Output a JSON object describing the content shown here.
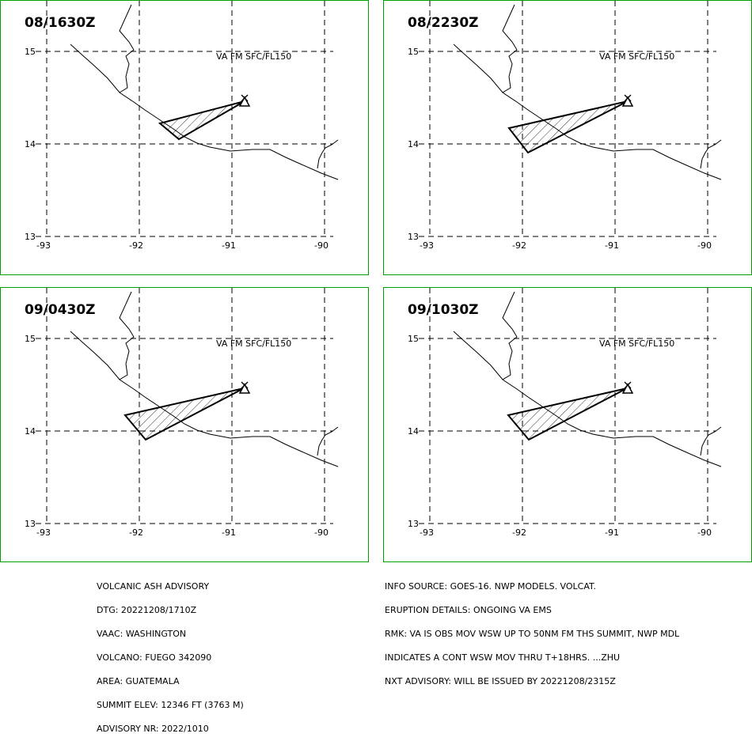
{
  "panels": [
    {
      "time": "08/1630Z",
      "level": "VA FM SFC/FL150"
    },
    {
      "time": "08/2230Z",
      "level": "VA FM SFC/FL150"
    },
    {
      "time": "09/0430Z",
      "level": "VA FM SFC/FL150"
    },
    {
      "time": "09/1030Z",
      "level": "VA FM SFC/FL150"
    }
  ],
  "lat_labels": [
    "15",
    "14",
    "13"
  ],
  "lon_labels": [
    "-93",
    "-92",
    "-91",
    "-90"
  ],
  "advisory_left": [
    "VOLCANIC ASH ADVISORY",
    "DTG: 20221208/1710Z",
    "VAAC: WASHINGTON",
    "VOLCANO: FUEGO 342090",
    "AREA: GUATEMALA",
    "SUMMIT ELEV: 12346 FT (3763 M)",
    "ADVISORY NR: 2022/1010"
  ],
  "advisory_right": [
    "INFO SOURCE: GOES-16. NWP MODELS. VOLCAT.",
    "ERUPTION DETAILS: ONGOING VA EMS",
    "RMK: VA IS OBS MOV WSW UP TO 50NM FM THS SUMMIT, NWP MDL",
    "INDICATES A CONT WSW MOV THRU T+18HRS. ...ZHU",
    "NXT ADVISORY: WILL BE ISSUED BY 20221208/2315Z"
  ],
  "colors": {
    "frame": "#00a000",
    "lines": "#000000",
    "background": "#ffffff"
  },
  "volcano_symbol": "triangle-x-icon"
}
